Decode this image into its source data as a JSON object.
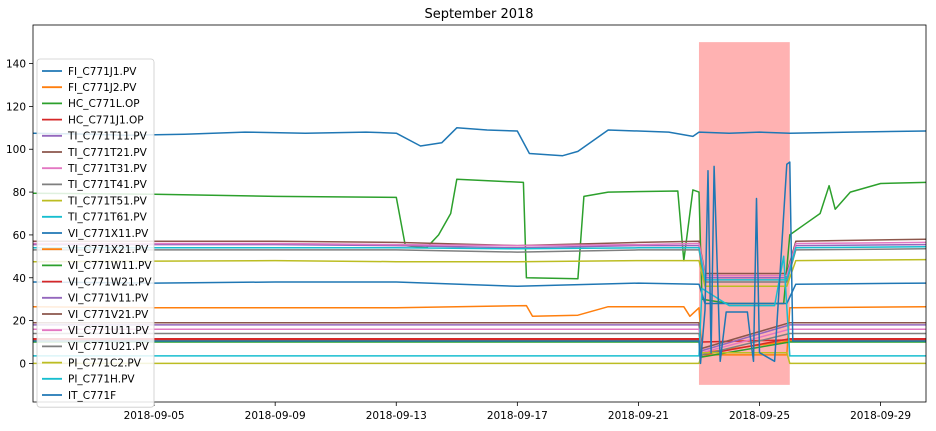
{
  "chart_data": {
    "type": "line",
    "title": "September 2018",
    "xlabel": "",
    "ylabel": "",
    "x_range": [
      "2018-09-01",
      "2018-09-30T12:00"
    ],
    "ylim": [
      -18,
      158
    ],
    "x_ticks": [
      "2018-09-05",
      "2018-09-09",
      "2018-09-13",
      "2018-09-17",
      "2018-09-21",
      "2018-09-25",
      "2018-09-29"
    ],
    "y_ticks": [
      0,
      20,
      40,
      60,
      80,
      100,
      120,
      140
    ],
    "legend_position": "left",
    "grid": false,
    "highlight": {
      "x_start": "2018-09-23",
      "x_end": "2018-09-26",
      "y_start": -10,
      "y_end": 150,
      "color": "#ffb2b2"
    },
    "series": [
      {
        "name": "FI_C771J1.PV",
        "color": "#1f77b4",
        "points": [
          [
            "2018-09-01",
            107.5
          ],
          [
            "2018-09-03",
            107
          ],
          [
            "2018-09-04",
            106.5
          ],
          [
            "2018-09-06",
            107
          ],
          [
            "2018-09-08",
            108
          ],
          [
            "2018-09-10",
            107.5
          ],
          [
            "2018-09-12",
            108
          ],
          [
            "2018-09-13",
            107.5
          ],
          [
            "2018-09-13.8",
            101.5
          ],
          [
            "2018-09-14.5",
            103
          ],
          [
            "2018-09-15",
            110
          ],
          [
            "2018-09-16",
            109
          ],
          [
            "2018-09-17",
            108.5
          ],
          [
            "2018-09-17.4",
            98
          ],
          [
            "2018-09-18.5",
            97
          ],
          [
            "2018-09-19",
            99
          ],
          [
            "2018-09-20",
            109
          ],
          [
            "2018-09-22",
            108
          ],
          [
            "2018-09-22.8",
            106
          ],
          [
            "2018-09-23",
            108
          ],
          [
            "2018-09-24",
            107.5
          ],
          [
            "2018-09-25",
            108
          ],
          [
            "2018-09-26",
            107.5
          ],
          [
            "2018-09-28",
            108
          ],
          [
            "2018-09-30.5",
            108.5
          ]
        ]
      },
      {
        "name": "FI_C771J2.PV",
        "color": "#ff7f0e",
        "points": [
          [
            "2018-09-01",
            26.5
          ],
          [
            "2018-09-05",
            26
          ],
          [
            "2018-09-09",
            26
          ],
          [
            "2018-09-13",
            26
          ],
          [
            "2018-09-15",
            26.5
          ],
          [
            "2018-09-17.3",
            27
          ],
          [
            "2018-09-17.5",
            22
          ],
          [
            "2018-09-19",
            22.5
          ],
          [
            "2018-09-20",
            26.5
          ],
          [
            "2018-09-22.5",
            26.5
          ],
          [
            "2018-09-22.7",
            22
          ],
          [
            "2018-09-23",
            26
          ],
          [
            "2018-09-23.1",
            4
          ],
          [
            "2018-09-25.9",
            4
          ],
          [
            "2018-09-26",
            26
          ],
          [
            "2018-09-30.5",
            26.5
          ]
        ]
      },
      {
        "name": "HC_C771L.OP",
        "color": "#2ca02c",
        "points": [
          [
            "2018-09-01",
            79.5
          ],
          [
            "2018-09-05",
            79
          ],
          [
            "2018-09-09",
            78
          ],
          [
            "2018-09-13",
            77.5
          ],
          [
            "2018-09-13.3",
            55
          ],
          [
            "2018-09-14",
            54
          ],
          [
            "2018-09-14.4",
            60
          ],
          [
            "2018-09-14.8",
            70
          ],
          [
            "2018-09-15",
            86
          ],
          [
            "2018-09-17.2",
            84.5
          ],
          [
            "2018-09-17.3",
            40
          ],
          [
            "2018-09-19",
            39.5
          ],
          [
            "2018-09-19.2",
            78
          ],
          [
            "2018-09-20",
            80
          ],
          [
            "2018-09-22.3",
            80.5
          ],
          [
            "2018-09-22.5",
            48
          ],
          [
            "2018-09-22.8",
            81
          ],
          [
            "2018-09-23",
            80
          ],
          [
            "2018-09-23.1",
            30
          ],
          [
            "2018-09-24",
            28
          ],
          [
            "2018-09-25.8",
            28
          ],
          [
            "2018-09-26",
            60
          ],
          [
            "2018-09-26.5",
            65
          ],
          [
            "2018-09-27",
            70
          ],
          [
            "2018-09-27.3",
            83
          ],
          [
            "2018-09-27.5",
            72
          ],
          [
            "2018-09-28",
            80
          ],
          [
            "2018-09-29",
            84
          ],
          [
            "2018-09-30.5",
            84.5
          ]
        ]
      },
      {
        "name": "HC_C771J1.OP",
        "color": "#d62728",
        "points": [
          [
            "2018-09-01",
            11
          ],
          [
            "2018-09-09",
            11
          ],
          [
            "2018-09-17",
            11
          ],
          [
            "2018-09-23",
            11
          ],
          [
            "2018-09-23.1",
            10
          ],
          [
            "2018-09-26",
            11
          ],
          [
            "2018-09-30.5",
            11
          ]
        ]
      },
      {
        "name": "TI_C771T11.PV",
        "color": "#9467bd",
        "points": [
          [
            "2018-09-01",
            55.5
          ],
          [
            "2018-09-09",
            55.5
          ],
          [
            "2018-09-13",
            55
          ],
          [
            "2018-09-17",
            54
          ],
          [
            "2018-09-21",
            55
          ],
          [
            "2018-09-23",
            55
          ],
          [
            "2018-09-23.2",
            40
          ],
          [
            "2018-09-25.9",
            40
          ],
          [
            "2018-09-26.2",
            55
          ],
          [
            "2018-09-30.5",
            55.5
          ]
        ]
      },
      {
        "name": "TI_C771T21.PV",
        "color": "#8c564b",
        "points": [
          [
            "2018-09-01",
            57
          ],
          [
            "2018-09-09",
            57
          ],
          [
            "2018-09-13",
            56.5
          ],
          [
            "2018-09-17",
            55
          ],
          [
            "2018-09-21",
            56.5
          ],
          [
            "2018-09-23",
            57
          ],
          [
            "2018-09-23.2",
            42
          ],
          [
            "2018-09-25.9",
            42
          ],
          [
            "2018-09-26.2",
            57
          ],
          [
            "2018-09-30.5",
            58
          ]
        ]
      },
      {
        "name": "TI_C771T31.PV",
        "color": "#e377c2",
        "points": [
          [
            "2018-09-01",
            56
          ],
          [
            "2018-09-09",
            56
          ],
          [
            "2018-09-13",
            55.5
          ],
          [
            "2018-09-17",
            55
          ],
          [
            "2018-09-21",
            55.5
          ],
          [
            "2018-09-23",
            56
          ],
          [
            "2018-09-23.2",
            41
          ],
          [
            "2018-09-25.9",
            41
          ],
          [
            "2018-09-26.2",
            56
          ],
          [
            "2018-09-30.5",
            56.5
          ]
        ]
      },
      {
        "name": "TI_C771T41.PV",
        "color": "#7f7f7f",
        "points": [
          [
            "2018-09-01",
            53
          ],
          [
            "2018-09-09",
            53
          ],
          [
            "2018-09-13",
            53
          ],
          [
            "2018-09-17",
            52
          ],
          [
            "2018-09-21",
            53
          ],
          [
            "2018-09-23",
            53
          ],
          [
            "2018-09-23.2",
            38
          ],
          [
            "2018-09-25.9",
            38
          ],
          [
            "2018-09-26.2",
            53
          ],
          [
            "2018-09-30.5",
            53.5
          ]
        ]
      },
      {
        "name": "TI_C771T51.PV",
        "color": "#bcbd22",
        "points": [
          [
            "2018-09-01",
            47.5
          ],
          [
            "2018-09-09",
            48
          ],
          [
            "2018-09-13",
            47.5
          ],
          [
            "2018-09-17",
            47.5
          ],
          [
            "2018-09-21",
            48
          ],
          [
            "2018-09-23",
            48
          ],
          [
            "2018-09-23.2",
            36
          ],
          [
            "2018-09-25.9",
            36
          ],
          [
            "2018-09-26.2",
            48
          ],
          [
            "2018-09-30.5",
            48.5
          ]
        ]
      },
      {
        "name": "TI_C771T61.PV",
        "color": "#17becf",
        "points": [
          [
            "2018-09-01",
            54
          ],
          [
            "2018-09-09",
            54
          ],
          [
            "2018-09-13",
            54
          ],
          [
            "2018-09-17",
            53.5
          ],
          [
            "2018-09-21",
            54
          ],
          [
            "2018-09-23",
            54
          ],
          [
            "2018-09-23.2",
            39
          ],
          [
            "2018-09-25.9",
            39
          ],
          [
            "2018-09-26.2",
            54
          ],
          [
            "2018-09-30.5",
            54.5
          ]
        ]
      },
      {
        "name": "VI_C771X11.PV",
        "color": "#1f77b4",
        "points": [
          [
            "2018-09-01",
            38
          ],
          [
            "2018-09-05",
            37.5
          ],
          [
            "2018-09-09",
            38
          ],
          [
            "2018-09-13",
            38
          ],
          [
            "2018-09-17",
            36
          ],
          [
            "2018-09-21",
            37.5
          ],
          [
            "2018-09-23",
            37
          ],
          [
            "2018-09-23.2",
            28
          ],
          [
            "2018-09-25.9",
            28
          ],
          [
            "2018-09-26.2",
            37
          ],
          [
            "2018-09-30.5",
            37.5
          ]
        ]
      },
      {
        "name": "VI_C771X21.PV",
        "color": "#ff7f0e",
        "points": [
          [
            "2018-09-01",
            10.5
          ],
          [
            "2018-09-17",
            10.5
          ],
          [
            "2018-09-23",
            10.5
          ],
          [
            "2018-09-23.1",
            5
          ],
          [
            "2018-09-26",
            10.5
          ],
          [
            "2018-09-30.5",
            10.5
          ]
        ]
      },
      {
        "name": "VI_C771W11.PV",
        "color": "#2ca02c",
        "points": [
          [
            "2018-09-01",
            10
          ],
          [
            "2018-09-17",
            10
          ],
          [
            "2018-09-23",
            10
          ],
          [
            "2018-09-23.1",
            3
          ],
          [
            "2018-09-26",
            10
          ],
          [
            "2018-09-30.5",
            10
          ]
        ]
      },
      {
        "name": "VI_C771W21.PV",
        "color": "#d62728",
        "points": [
          [
            "2018-09-01",
            11.5
          ],
          [
            "2018-09-17",
            11.5
          ],
          [
            "2018-09-23",
            11.5
          ],
          [
            "2018-09-23.1",
            4
          ],
          [
            "2018-09-26",
            11.5
          ],
          [
            "2018-09-30.5",
            11.5
          ]
        ]
      },
      {
        "name": "VI_C771V11.PV",
        "color": "#9467bd",
        "points": [
          [
            "2018-09-01",
            18
          ],
          [
            "2018-09-09",
            18
          ],
          [
            "2018-09-17",
            18
          ],
          [
            "2018-09-23",
            18
          ],
          [
            "2018-09-23.1",
            6
          ],
          [
            "2018-09-26",
            18
          ],
          [
            "2018-09-30.5",
            18
          ]
        ]
      },
      {
        "name": "VI_C771V21.PV",
        "color": "#8c564b",
        "points": [
          [
            "2018-09-01",
            19
          ],
          [
            "2018-09-09",
            19
          ],
          [
            "2018-09-17",
            19
          ],
          [
            "2018-09-23",
            19
          ],
          [
            "2018-09-23.1",
            7
          ],
          [
            "2018-09-26",
            19
          ],
          [
            "2018-09-30.5",
            19
          ]
        ]
      },
      {
        "name": "VI_C771U11.PV",
        "color": "#e377c2",
        "points": [
          [
            "2018-09-01",
            16
          ],
          [
            "2018-09-09",
            16
          ],
          [
            "2018-09-17",
            16
          ],
          [
            "2018-09-23",
            16
          ],
          [
            "2018-09-23.1",
            5
          ],
          [
            "2018-09-26",
            16
          ],
          [
            "2018-09-30.5",
            16
          ]
        ]
      },
      {
        "name": "VI_C771U21.PV",
        "color": "#7f7f7f",
        "points": [
          [
            "2018-09-01",
            14
          ],
          [
            "2018-09-09",
            14
          ],
          [
            "2018-09-17",
            14
          ],
          [
            "2018-09-23",
            14
          ],
          [
            "2018-09-23.1",
            4
          ],
          [
            "2018-09-26",
            14
          ],
          [
            "2018-09-30.5",
            14
          ]
        ]
      },
      {
        "name": "PI_C771C2.PV",
        "color": "#bcbd22",
        "points": [
          [
            "2018-09-01",
            0
          ],
          [
            "2018-09-15",
            0
          ],
          [
            "2018-09-23",
            0
          ],
          [
            "2018-09-23.1",
            5
          ],
          [
            "2018-09-25.9",
            5
          ],
          [
            "2018-09-26",
            0
          ],
          [
            "2018-09-30.5",
            0
          ]
        ]
      },
      {
        "name": "PI_C771H.PV",
        "color": "#17becf",
        "points": [
          [
            "2018-09-01",
            3.5
          ],
          [
            "2018-09-15",
            3.5
          ],
          [
            "2018-09-23",
            3.5
          ],
          [
            "2018-09-23.1",
            35
          ],
          [
            "2018-09-24",
            27
          ],
          [
            "2018-09-25.5",
            27
          ],
          [
            "2018-09-25.8",
            50
          ],
          [
            "2018-09-26",
            3.5
          ],
          [
            "2018-09-30.5",
            3.5
          ]
        ]
      },
      {
        "name": "IT_C771F",
        "color": "#1f77b4",
        "points": [
          [
            "2018-09-01",
            10.5
          ],
          [
            "2018-09-17",
            10.5
          ],
          [
            "2018-09-23",
            10.5
          ],
          [
            "2018-09-23.05",
            0
          ],
          [
            "2018-09-23.2",
            25
          ],
          [
            "2018-09-23.3",
            90
          ],
          [
            "2018-09-23.4",
            5
          ],
          [
            "2018-09-23.5",
            92
          ],
          [
            "2018-09-23.7",
            1
          ],
          [
            "2018-09-23.9",
            24
          ],
          [
            "2018-09-24.6",
            24
          ],
          [
            "2018-09-24.7",
            12
          ],
          [
            "2018-09-24.8",
            1
          ],
          [
            "2018-09-24.9",
            77
          ],
          [
            "2018-09-25.0",
            5
          ],
          [
            "2018-09-25.5",
            1
          ],
          [
            "2018-09-25.9",
            93
          ],
          [
            "2018-09-26",
            94
          ],
          [
            "2018-09-26.1",
            10.5
          ],
          [
            "2018-09-30.5",
            10.5
          ]
        ]
      }
    ]
  }
}
